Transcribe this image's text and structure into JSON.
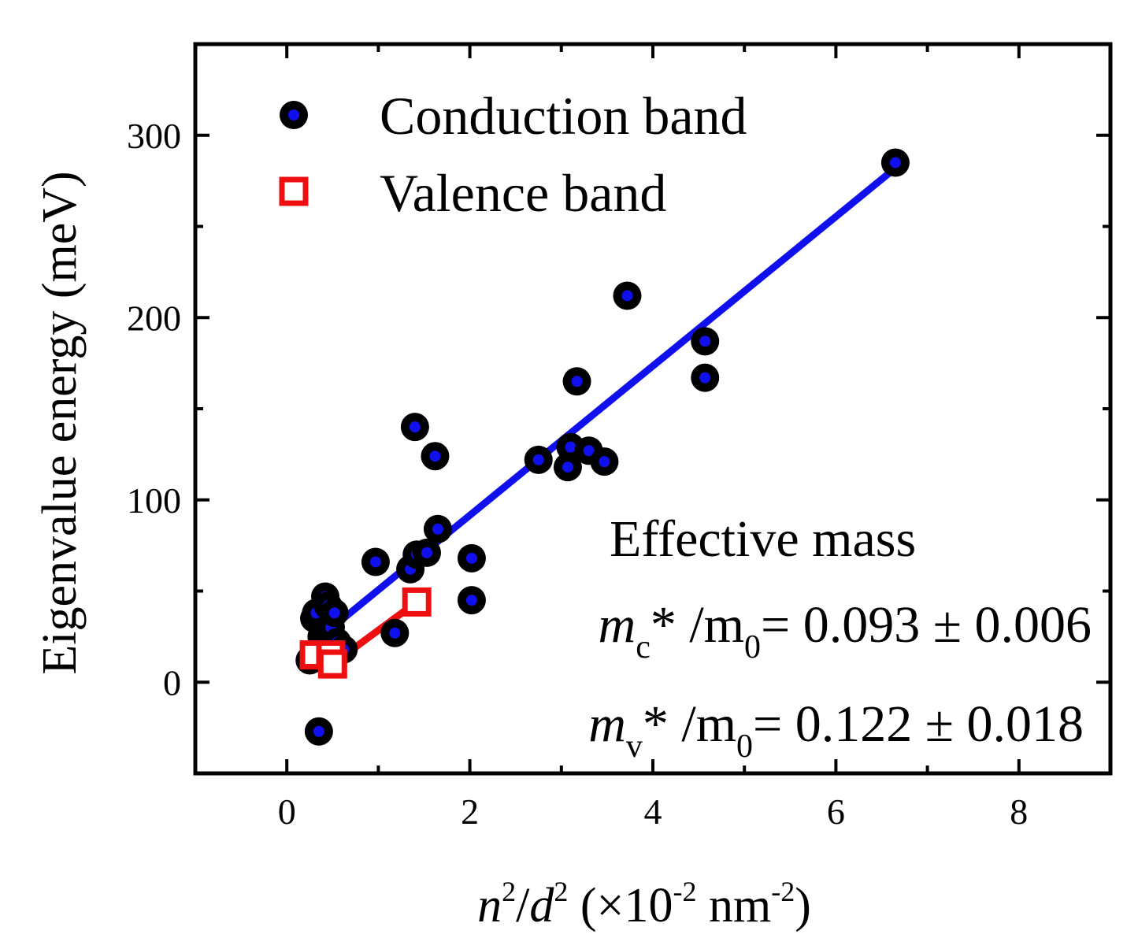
{
  "chart_data": {
    "type": "scatter",
    "title": "",
    "xlabel": {
      "n": "n",
      "sup1": "2",
      "slash": "/",
      "d": "d",
      "sup2": "2",
      "rest1": " (×10",
      "sup3": "-2",
      "rest2": " nm",
      "sup4": "-2",
      "rest3": ")"
    },
    "ylabel": "Eigenvalue energy (meV)",
    "xlim": [
      -1,
      9
    ],
    "ylim": [
      -50,
      350
    ],
    "xticks": [
      0,
      2,
      4,
      6,
      8
    ],
    "xtick_labels": [
      "0",
      "2",
      "4",
      "6",
      "8"
    ],
    "yticks": [
      0,
      100,
      200,
      300
    ],
    "ytick_labels": [
      "0",
      "100",
      "200",
      "300"
    ],
    "x_minor_ticks": [
      1,
      3,
      5,
      7
    ],
    "y_minor_ticks": [
      50,
      150,
      250
    ],
    "grid": false,
    "legend_position": "top-left",
    "series": [
      {
        "name": "Conduction band",
        "marker": "circle",
        "color": "#1010ee",
        "edge_color": "#000000",
        "points": [
          {
            "x": 0.25,
            "y": 12
          },
          {
            "x": 0.3,
            "y": 35
          },
          {
            "x": 0.32,
            "y": 38
          },
          {
            "x": 0.35,
            "y": -27
          },
          {
            "x": 0.38,
            "y": 25
          },
          {
            "x": 0.4,
            "y": 20
          },
          {
            "x": 0.42,
            "y": 47
          },
          {
            "x": 0.45,
            "y": 42
          },
          {
            "x": 0.48,
            "y": 30
          },
          {
            "x": 0.52,
            "y": 38
          },
          {
            "x": 0.55,
            "y": 22
          },
          {
            "x": 0.62,
            "y": 18
          },
          {
            "x": 0.97,
            "y": 66
          },
          {
            "x": 1.18,
            "y": 27
          },
          {
            "x": 1.35,
            "y": 62
          },
          {
            "x": 1.42,
            "y": 70
          },
          {
            "x": 1.4,
            "y": 140
          },
          {
            "x": 1.53,
            "y": 71
          },
          {
            "x": 1.62,
            "y": 124
          },
          {
            "x": 1.65,
            "y": 84
          },
          {
            "x": 2.02,
            "y": 68
          },
          {
            "x": 2.02,
            "y": 45
          },
          {
            "x": 2.75,
            "y": 122
          },
          {
            "x": 3.07,
            "y": 118
          },
          {
            "x": 3.1,
            "y": 129
          },
          {
            "x": 3.17,
            "y": 165
          },
          {
            "x": 3.3,
            "y": 127
          },
          {
            "x": 3.47,
            "y": 121
          },
          {
            "x": 3.72,
            "y": 212
          },
          {
            "x": 4.57,
            "y": 187
          },
          {
            "x": 4.57,
            "y": 167
          },
          {
            "x": 6.65,
            "y": 285
          }
        ]
      },
      {
        "name": "Valence band",
        "marker": "square",
        "color": "#ee1010",
        "points": [
          {
            "x": 0.3,
            "y": 15
          },
          {
            "x": 0.48,
            "y": 15
          },
          {
            "x": 0.5,
            "y": 10
          },
          {
            "x": 1.42,
            "y": 44
          }
        ]
      }
    ],
    "fits": [
      {
        "name": "Conduction band fit",
        "color": "#1010ee",
        "x": [
          0.35,
          6.65
        ],
        "y": [
          24,
          282
        ]
      },
      {
        "name": "Valence band fit",
        "color": "#ee1010",
        "x": [
          0.3,
          0.5,
          1.42
        ],
        "y": [
          15,
          10,
          44
        ]
      }
    ],
    "annotations": {
      "title": "Effective mass",
      "mc_var": "m",
      "mc_sub": "c",
      "mc_rest": "* /m",
      "mc_sub0": "0",
      "mc_value": "= 0.093 ± 0.006",
      "mv_var": "m",
      "mv_sub": "v",
      "mv_rest": "* /m",
      "mv_sub0": "0",
      "mv_value": "= 0.122 ± 0.018"
    }
  }
}
